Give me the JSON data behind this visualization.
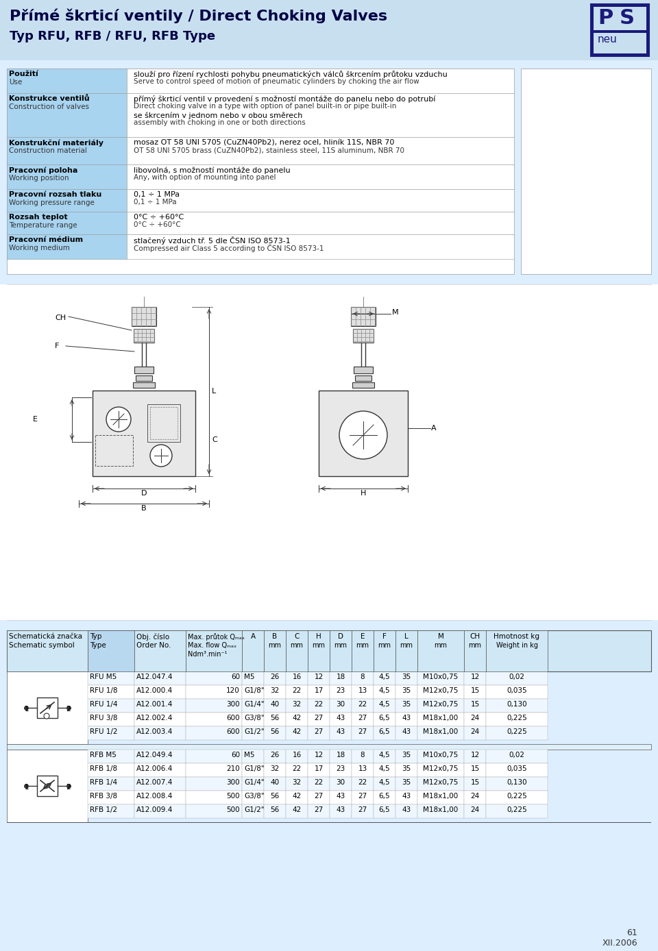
{
  "title_line1": "Přímé škrticí ventily / Direct Choking Valves",
  "title_line2": "Typ RFU, RFB / RFU, RFB Type",
  "header_bg": "#c8dff0",
  "bg_color": "#ddeeff",
  "spec_rows": [
    {
      "label_cz": "Použití",
      "label_en": "Use",
      "value_cz": "slouží pro řízení rychlosti pohybu pneumatických válců škrcením průtoku vzduchu",
      "value_en": "Serve to control speed of motion of pneumatic cylinders by choking the air flow",
      "value_cz2": "",
      "value_en2": "",
      "highlight": true,
      "label_only_cz": true
    },
    {
      "label_cz": "Konstrukce ventilů",
      "label_en": "Construction of valves",
      "value_cz": "přímý škrticí ventil v provedení s možností montáže do panelu nebo do potrubí",
      "value_en": "Direct choking valve in a type with option of panel built-in or pipe built-in",
      "value_cz2": "se škrcením v jednom nebo v obou směrech",
      "value_en2": "assembly with choking in one or both directions",
      "highlight": true,
      "label_only_cz": false
    },
    {
      "label_cz": "Konstrukční materiály",
      "label_en": "Construction material",
      "value_cz": "mosaz OT 58 UNI 5705 (CuZN40Pb2), nerez ocel, hliník 11S, NBR 70",
      "value_en": "OT 58 UNI 5705 brass (CuZN40Pb2), stainless steel, 11S aluminum, NBR 70",
      "value_cz2": "",
      "value_en2": "",
      "highlight": true,
      "label_only_cz": false
    },
    {
      "label_cz": "Pracovní poloha",
      "label_en": "Working position",
      "value_cz": "libovolná, s možností montáže do panelu",
      "value_en": "Any, with option of mounting into panel",
      "value_cz2": "",
      "value_en2": "",
      "highlight": true,
      "label_only_cz": false
    },
    {
      "label_cz": "Pracovní rozsah tlaku",
      "label_en": "Working pressure range",
      "value_cz": "0,1 ÷ 1 MPa",
      "value_en": "0,1 ÷ 1 MPa",
      "value_cz2": "",
      "value_en2": "",
      "highlight": true,
      "label_only_cz": false
    },
    {
      "label_cz": "Rozsah teplot",
      "label_en": "Temperature range",
      "value_cz": "0°C ÷ +60°C",
      "value_en": "0°C ÷ +60°C",
      "value_cz2": "",
      "value_en2": "",
      "highlight": true,
      "label_only_cz": false
    },
    {
      "label_cz": "Pracovní médium",
      "label_en": "Working medium",
      "value_cz": "stlačený vzduch tř. 5 dle ČSN ISO 8573-1",
      "value_en": "Compressed air Class 5 according to ČSN ISO 8573-1",
      "value_cz2": "",
      "value_en2": "",
      "highlight": true,
      "label_only_cz": false
    }
  ],
  "rfu_rows": [
    [
      "RFU M5",
      "A12.047.4",
      "60",
      "M5",
      "26",
      "16",
      "12",
      "18",
      "8",
      "4,5",
      "35",
      "M10x0,75",
      "12",
      "0,02"
    ],
    [
      "RFU 1/8",
      "A12.000.4",
      "120",
      "G1/8\"",
      "32",
      "22",
      "17",
      "23",
      "13",
      "4,5",
      "35",
      "M12x0,75",
      "15",
      "0,035"
    ],
    [
      "RFU 1/4",
      "A12.001.4",
      "300",
      "G1/4\"",
      "40",
      "32",
      "22",
      "30",
      "22",
      "4,5",
      "35",
      "M12x0,75",
      "15",
      "0,130"
    ],
    [
      "RFU 3/8",
      "A12.002.4",
      "600",
      "G3/8\"",
      "56",
      "42",
      "27",
      "43",
      "27",
      "6,5",
      "43",
      "M18x1,00",
      "24",
      "0,225"
    ],
    [
      "RFU 1/2",
      "A12.003.4",
      "600",
      "G1/2\"",
      "56",
      "42",
      "27",
      "43",
      "27",
      "6,5",
      "43",
      "M18x1,00",
      "24",
      "0,225"
    ]
  ],
  "rfb_rows": [
    [
      "RFB M5",
      "A12.049.4",
      "60",
      "M5",
      "26",
      "16",
      "12",
      "18",
      "8",
      "4,5",
      "35",
      "M10x0,75",
      "12",
      "0,02"
    ],
    [
      "RFB 1/8",
      "A12.006.4",
      "210",
      "G1/8\"",
      "32",
      "22",
      "17",
      "23",
      "13",
      "4,5",
      "35",
      "M12x0,75",
      "15",
      "0,035"
    ],
    [
      "RFB 1/4",
      "A12.007.4",
      "300",
      "G1/4\"",
      "40",
      "32",
      "22",
      "30",
      "22",
      "4,5",
      "35",
      "M12x0,75",
      "15",
      "0,130"
    ],
    [
      "RFB 3/8",
      "A12.008.4",
      "500",
      "G3/8\"",
      "56",
      "42",
      "27",
      "43",
      "27",
      "6,5",
      "43",
      "M18x1,00",
      "24",
      "0,225"
    ],
    [
      "RFB 1/2",
      "A12.009.4",
      "500",
      "G1/2\"",
      "56",
      "42",
      "27",
      "43",
      "27",
      "6,5",
      "43",
      "M18x1,00",
      "24",
      "0,225"
    ]
  ],
  "page_number": "61",
  "page_date": "XII.2006"
}
